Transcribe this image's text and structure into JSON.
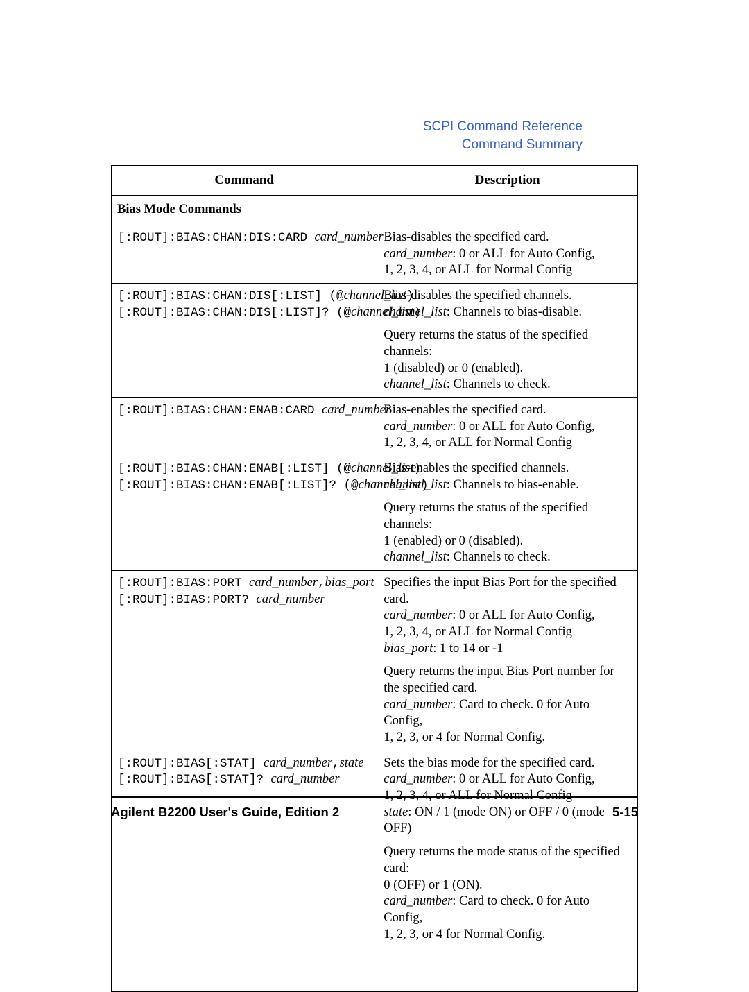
{
  "header": {
    "ref_line1": "SCPI Command Reference",
    "ref_line2": "Command Summary"
  },
  "table": {
    "headers": {
      "command": "Command",
      "description": "Description"
    },
    "section_title": "Bias Mode Commands",
    "rows": [
      {
        "cmd_lines": [
          {
            "pre": "[:ROUT]:BIAS:CHAN:DIS:CARD ",
            "arg": "card_number"
          }
        ],
        "desc_blocks": [
          [
            {
              "text": "Bias-disables the specified card."
            },
            {
              "ital": "card_number",
              "text": ": 0 or ALL for Auto Config,"
            },
            {
              "text": "1, 2, 3, 4, or ALL for Normal Config"
            }
          ]
        ]
      },
      {
        "cmd_lines": [
          {
            "pre": "[:ROUT]:BIAS:CHAN:DIS[:LIST]  (@",
            "arg": "channel_list",
            "post": ")"
          },
          {
            "pre": "[:ROUT]:BIAS:CHAN:DIS[:LIST]?  (@",
            "arg": "channel_list",
            "post": ")"
          }
        ],
        "desc_blocks": [
          [
            {
              "text": "Bias-disables the specified channels."
            },
            {
              "ital": "channel_list",
              "text": ": Channels to bias-disable."
            }
          ],
          [
            {
              "text": "Query returns the status of the specified channels:"
            },
            {
              "text": "1 (disabled) or 0 (enabled)."
            },
            {
              "ital": "channel_list",
              "text": ": Channels to check."
            }
          ]
        ]
      },
      {
        "cmd_lines": [
          {
            "pre": "[:ROUT]:BIAS:CHAN:ENAB:CARD ",
            "arg": "card_number"
          }
        ],
        "desc_blocks": [
          [
            {
              "text": "Bias-enables the specified card."
            },
            {
              "ital": "card_number",
              "text": ": 0 or ALL for Auto Config,"
            },
            {
              "text": "1, 2, 3, 4, or ALL for Normal Config"
            }
          ]
        ]
      },
      {
        "cmd_lines": [
          {
            "pre": "[:ROUT]:BIAS:CHAN:ENAB[:LIST]  (@",
            "arg": "channel_list",
            "post": ")"
          },
          {
            "pre": "[:ROUT]:BIAS:CHAN:ENAB[:LIST]?  (@",
            "arg": "channel_list",
            "post": ")"
          }
        ],
        "desc_blocks": [
          [
            {
              "text": "Bias-enables the specified channels."
            },
            {
              "ital": "channel_list",
              "text": ": Channels to bias-enable."
            }
          ],
          [
            {
              "text": "Query returns the status of the specified channels:"
            },
            {
              "text": "1 (enabled) or 0 (disabled)."
            },
            {
              "ital": "channel_list",
              "text": ": Channels to check."
            }
          ]
        ]
      },
      {
        "cmd_lines": [
          {
            "pre": "[:ROUT]:BIAS:PORT ",
            "arg": "card_number",
            "post": ",",
            "arg2": "bias_port"
          },
          {
            "pre": "[:ROUT]:BIAS:PORT? ",
            "arg": "card_number"
          }
        ],
        "desc_blocks": [
          [
            {
              "text": "Specifies the input Bias Port for the specified card."
            },
            {
              "ital": "card_number",
              "text": ": 0 or ALL for Auto Config,"
            },
            {
              "text": "1, 2, 3, 4, or ALL for Normal Config"
            },
            {
              "ital": "bias_port",
              "text": ": 1 to 14 or -1"
            }
          ],
          [
            {
              "text": "Query returns the input Bias Port number for the specified card."
            },
            {
              "ital": "card_number",
              "text": ": Card to check. 0 for Auto Config,"
            },
            {
              "text": "1, 2, 3, or 4 for Normal Config."
            }
          ]
        ]
      },
      {
        "cmd_lines": [
          {
            "pre": "[:ROUT]:BIAS[:STAT] ",
            "arg": "card_number",
            "post": ",",
            "arg2": "state"
          },
          {
            "pre": "[:ROUT]:BIAS[:STAT]? ",
            "arg": "card_number"
          }
        ],
        "desc_blocks": [
          [
            {
              "text": "Sets the bias mode for the specified card."
            },
            {
              "ital": "card_number",
              "text": ": 0 or ALL for Auto Config,"
            },
            {
              "text": "1, 2, 3, 4, or ALL for Normal Config"
            },
            {
              "ital": "state",
              "text": ": ON / 1 (mode ON) or OFF / 0 (mode OFF)"
            }
          ],
          [
            {
              "text": "Query returns the mode status of the specified card:"
            },
            {
              "text": "0 (OFF) or 1 (ON)."
            },
            {
              "ital": "card_number",
              "text": ": Card to check. 0 for Auto Config,"
            },
            {
              "text": "1, 2, 3, or 4 for Normal Config."
            }
          ]
        ]
      }
    ]
  },
  "footer": {
    "left": "Agilent B2200 User's Guide, Edition 2",
    "right": "5-15"
  }
}
